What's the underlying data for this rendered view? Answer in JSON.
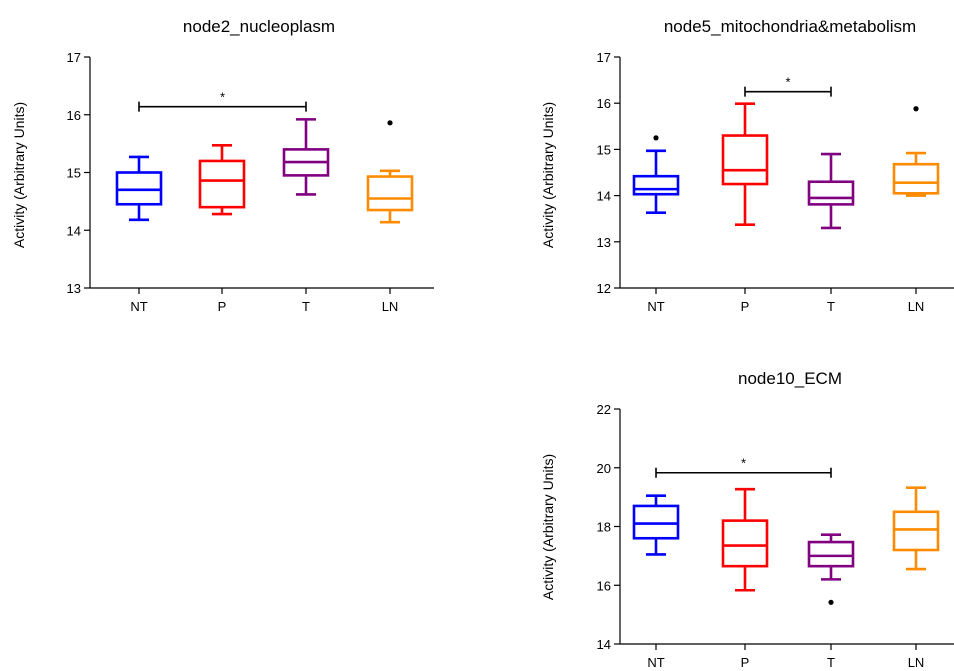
{
  "chart_data": [
    {
      "type": "boxplot",
      "title": "node2_nucleoplasm",
      "ylabel": "Activity (Arbitrary Units)",
      "ylim": [
        13,
        17
      ],
      "yticks": [
        13,
        14,
        15,
        16,
        17
      ],
      "categories": [
        "NT",
        "P",
        "T",
        "LN"
      ],
      "boxes": [
        {
          "category": "NT",
          "color": "#0000ff",
          "min": 14.18,
          "q1": 14.45,
          "median": 14.7,
          "q3": 15.0,
          "max": 15.27,
          "outliers": []
        },
        {
          "category": "P",
          "color": "#ff0000",
          "min": 14.28,
          "q1": 14.4,
          "median": 14.86,
          "q3": 15.2,
          "max": 15.47,
          "outliers": []
        },
        {
          "category": "T",
          "color": "#800080",
          "min": 14.62,
          "q1": 14.95,
          "median": 15.18,
          "q3": 15.4,
          "max": 15.92,
          "outliers": []
        },
        {
          "category": "LN",
          "color": "#ff8c00",
          "min": 14.14,
          "q1": 14.35,
          "median": 14.55,
          "q3": 14.93,
          "max": 15.03,
          "outliers": [
            15.86
          ]
        }
      ],
      "significance": [
        {
          "from": "NT",
          "to": "T",
          "y": 16.14,
          "label": "*"
        }
      ]
    },
    {
      "type": "boxplot",
      "title": "node5_mitochondria&metabolism",
      "ylabel": "Activity (Arbitrary Units)",
      "ylim": [
        12,
        17
      ],
      "yticks": [
        12,
        13,
        14,
        15,
        16,
        17
      ],
      "categories": [
        "NT",
        "P",
        "T",
        "LN"
      ],
      "boxes": [
        {
          "category": "NT",
          "color": "#0000ff",
          "min": 13.63,
          "q1": 14.03,
          "median": 14.14,
          "q3": 14.42,
          "max": 14.97,
          "outliers": [
            15.25
          ]
        },
        {
          "category": "P",
          "color": "#ff0000",
          "min": 13.37,
          "q1": 14.25,
          "median": 14.55,
          "q3": 15.3,
          "max": 15.99,
          "outliers": []
        },
        {
          "category": "T",
          "color": "#800080",
          "min": 13.3,
          "q1": 13.81,
          "median": 13.95,
          "q3": 14.3,
          "max": 14.9,
          "outliers": []
        },
        {
          "category": "LN",
          "color": "#ff8c00",
          "min": 14.0,
          "q1": 14.05,
          "median": 14.28,
          "q3": 14.68,
          "max": 14.92,
          "outliers": [
            15.88
          ]
        }
      ],
      "significance": [
        {
          "from": "P",
          "to": "T",
          "y": 16.25,
          "label": "*"
        }
      ]
    },
    {
      "type": "boxplot",
      "title": "node10_ECM",
      "ylabel": "Activity (Arbitrary Units)",
      "ylim": [
        14,
        22
      ],
      "yticks": [
        14,
        16,
        18,
        20,
        22
      ],
      "categories": [
        "NT",
        "P",
        "T",
        "LN"
      ],
      "boxes": [
        {
          "category": "NT",
          "color": "#0000ff",
          "min": 17.05,
          "q1": 17.6,
          "median": 18.1,
          "q3": 18.7,
          "max": 19.05,
          "outliers": []
        },
        {
          "category": "P",
          "color": "#ff0000",
          "min": 15.83,
          "q1": 16.65,
          "median": 17.35,
          "q3": 18.2,
          "max": 19.27,
          "outliers": []
        },
        {
          "category": "T",
          "color": "#800080",
          "min": 16.2,
          "q1": 16.65,
          "median": 17.0,
          "q3": 17.47,
          "max": 17.72,
          "outliers": [
            15.42
          ]
        },
        {
          "category": "LN",
          "color": "#ff8c00",
          "min": 16.55,
          "q1": 17.2,
          "median": 17.9,
          "q3": 18.5,
          "max": 19.32,
          "outliers": []
        }
      ],
      "significance": [
        {
          "from": "NT",
          "to": "T",
          "y": 19.83,
          "label": "*"
        }
      ]
    }
  ]
}
